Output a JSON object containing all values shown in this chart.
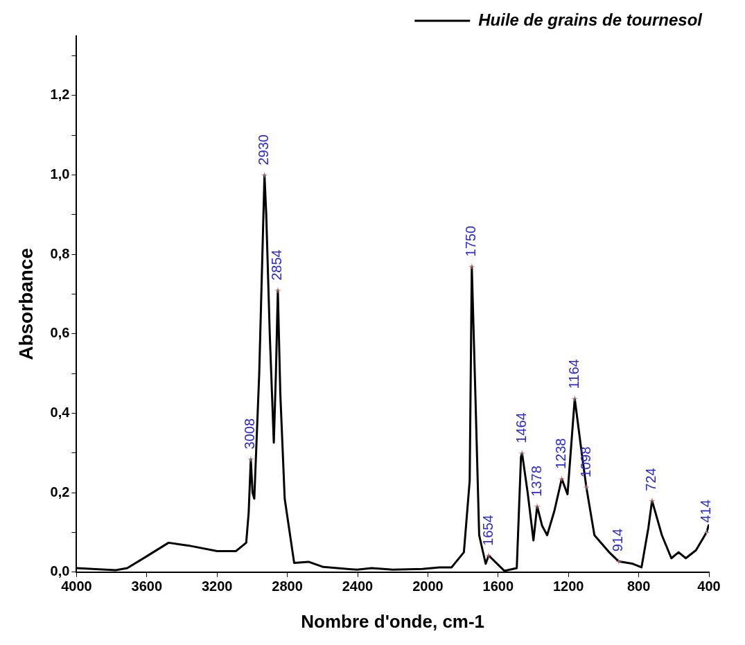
{
  "chart_data": {
    "type": "line",
    "xlabel": "Nombre d'onde, cm-1",
    "ylabel": "Absorbance",
    "xlim": [
      4000,
      400
    ],
    "ylim": [
      0,
      1.35
    ],
    "xticks": [
      4000,
      3600,
      3200,
      2800,
      2400,
      2000,
      1600,
      1200,
      800,
      400
    ],
    "yticks": [
      {
        "value": 0,
        "label": "0,0"
      },
      {
        "value": 0.1,
        "label": null
      },
      {
        "value": 0.2,
        "label": "0,2"
      },
      {
        "value": 0.3,
        "label": null
      },
      {
        "value": 0.4,
        "label": "0,4"
      },
      {
        "value": 0.5,
        "label": null
      },
      {
        "value": 0.6,
        "label": "0,6"
      },
      {
        "value": 0.7,
        "label": null
      },
      {
        "value": 0.8,
        "label": "0,8"
      },
      {
        "value": 0.9,
        "label": null
      },
      {
        "value": 1.0,
        "label": "1,0"
      },
      {
        "value": 1.1,
        "label": null
      },
      {
        "value": 1.2,
        "label": "1,2"
      },
      {
        "value": 1.3,
        "label": null
      }
    ],
    "grid": false,
    "legend": "top right",
    "marker": "none",
    "line_style": "solid",
    "series": [
      {
        "name": "Huile de grains de tournesol",
        "color": "#000000",
        "x": [
          4000,
          3777,
          3711,
          3600,
          3476,
          3364,
          3199,
          3092,
          3034,
          3020,
          3008,
          2998,
          2988,
          2960,
          2930,
          2920,
          2900,
          2877,
          2865,
          2854,
          2840,
          2815,
          2761,
          2679,
          2596,
          2402,
          2320,
          2200,
          2031,
          1935,
          1865,
          1795,
          1762,
          1750,
          1731,
          1708,
          1671,
          1654,
          1564,
          1494,
          1470,
          1464,
          1432,
          1399,
          1378,
          1350,
          1321,
          1280,
          1238,
          1205,
          1164,
          1122,
          1098,
          1052,
          970,
          914,
          833,
          784,
          745,
          724,
          668,
          614,
          573,
          532,
          474,
          414,
          400
        ],
        "values": [
          0.01,
          0.005,
          0.01,
          0.04,
          0.074,
          0.067,
          0.053,
          0.053,
          0.074,
          0.15,
          0.285,
          0.2,
          0.185,
          0.5,
          1.0,
          0.9,
          0.6,
          0.326,
          0.5,
          0.71,
          0.45,
          0.185,
          0.023,
          0.026,
          0.013,
          0.006,
          0.01,
          0.006,
          0.008,
          0.012,
          0.012,
          0.05,
          0.23,
          0.77,
          0.47,
          0.093,
          0.021,
          0.042,
          0.003,
          0.01,
          0.29,
          0.3,
          0.2,
          0.08,
          0.166,
          0.117,
          0.093,
          0.154,
          0.235,
          0.196,
          0.437,
          0.292,
          0.214,
          0.093,
          0.051,
          0.027,
          0.021,
          0.012,
          0.111,
          0.18,
          0.093,
          0.035,
          0.05,
          0.035,
          0.055,
          0.1,
          0.12
        ]
      }
    ],
    "annotations": [
      {
        "text": "3008",
        "x": 3008,
        "y": 0.285
      },
      {
        "text": "2930",
        "x": 2930,
        "y": 1.0
      },
      {
        "text": "2854",
        "x": 2854,
        "y": 0.71
      },
      {
        "text": "1750",
        "x": 1750,
        "y": 0.77
      },
      {
        "text": "1654",
        "x": 1654,
        "y": 0.042
      },
      {
        "text": "1464",
        "x": 1464,
        "y": 0.3
      },
      {
        "text": "1378",
        "x": 1378,
        "y": 0.166
      },
      {
        "text": "1238",
        "x": 1238,
        "y": 0.235
      },
      {
        "text": "1164",
        "x": 1164,
        "y": 0.437
      },
      {
        "text": "1098",
        "x": 1098,
        "y": 0.214
      },
      {
        "text": "914",
        "x": 914,
        "y": 0.027
      },
      {
        "text": "724",
        "x": 724,
        "y": 0.18
      },
      {
        "text": "414",
        "x": 414,
        "y": 0.1
      }
    ]
  }
}
